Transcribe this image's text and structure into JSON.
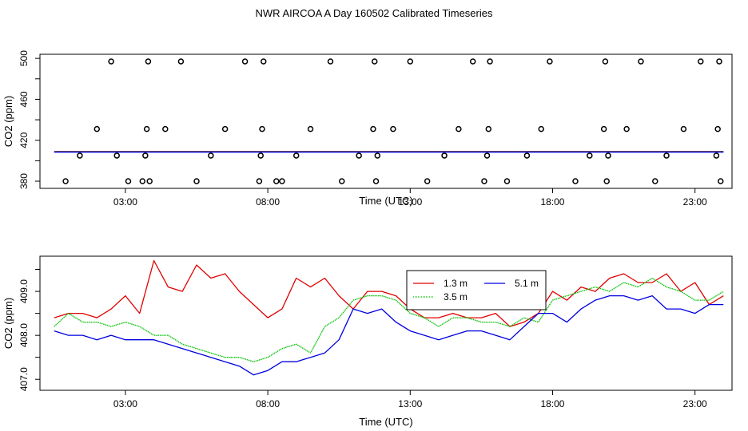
{
  "title": "NWR AIRCOA A  Day 160502  Calibrated Timeseries",
  "colors": {
    "h1": "#e00000",
    "h2": "#00c000",
    "h3": "#0000e0",
    "points": "#000000"
  },
  "chart_data": [
    {
      "type": "scatter",
      "panel": "top",
      "title": "NWR AIRCOA A  Day 160502  Calibrated Timeseries",
      "xlabel": "Time (UTC)",
      "ylabel": "CO2 (ppm)",
      "xlim": [
        0,
        24.3
      ],
      "ylim": [
        373,
        504
      ],
      "x_ticks": [
        3,
        8,
        13,
        18,
        23
      ],
      "x_tick_labels": [
        "03:00",
        "08:00",
        "13:00",
        "18:00",
        "23:00"
      ],
      "y_ticks": [
        380,
        400,
        420,
        440,
        460,
        480,
        500
      ],
      "y_tick_labels": [
        "380",
        "",
        "420",
        "",
        "460",
        "",
        "500"
      ],
      "calibration_points": {
        "x": [
          0.9,
          1.4,
          2.0,
          2.5,
          2.7,
          3.1,
          3.6,
          3.7,
          3.75,
          3.8,
          3.85,
          4.4,
          4.95,
          5.5,
          6.0,
          6.5,
          7.2,
          7.7,
          7.75,
          7.8,
          7.85,
          8.3,
          8.5,
          9.0,
          9.5,
          10.2,
          10.6,
          11.2,
          11.7,
          11.75,
          11.8,
          11.85,
          12.4,
          13.0,
          13.6,
          14.2,
          14.7,
          15.2,
          15.6,
          15.7,
          15.75,
          15.8,
          16.4,
          17.1,
          17.6,
          17.9,
          18.8,
          19.3,
          19.8,
          19.85,
          19.9,
          19.95,
          20.6,
          21.1,
          21.6,
          22.0,
          22.6,
          23.2,
          23.75,
          23.8,
          23.85,
          23.9
        ],
        "y": [
          380,
          405,
          431,
          497,
          405,
          380,
          380,
          405,
          431,
          497,
          380,
          431,
          497,
          380,
          405,
          431,
          497,
          380,
          405,
          431,
          497,
          380,
          380,
          405,
          431,
          497,
          380,
          405,
          431,
          497,
          380,
          405,
          431,
          497,
          380,
          405,
          431,
          497,
          380,
          405,
          431,
          497,
          380,
          405,
          431,
          497,
          380,
          405,
          431,
          497,
          380,
          405,
          431,
          497,
          380,
          405,
          431,
          497,
          405,
          431,
          497,
          380
        ]
      },
      "series_level": 408.7
    },
    {
      "type": "line",
      "panel": "bottom",
      "xlabel": "Time (UTC)",
      "ylabel": "CO2 (ppm)",
      "xlim": [
        0,
        24.3
      ],
      "ylim": [
        406.75,
        409.8
      ],
      "x_ticks": [
        3,
        8,
        13,
        18,
        23
      ],
      "x_tick_labels": [
        "03:00",
        "08:00",
        "13:00",
        "18:00",
        "23:00"
      ],
      "y_ticks": [
        407.0,
        407.5,
        408.0,
        408.5,
        409.0,
        409.5
      ],
      "y_tick_labels": [
        "407.0",
        "",
        "408.0",
        "",
        "409.0",
        ""
      ],
      "legend": {
        "position": "top-center"
      },
      "x": [
        0.5,
        1,
        1.5,
        2,
        2.5,
        3,
        3.5,
        4,
        4.5,
        5,
        5.5,
        6,
        6.5,
        7,
        7.5,
        8,
        8.5,
        9,
        9.5,
        10,
        10.5,
        11,
        11.5,
        12,
        12.5,
        13,
        13.5,
        14,
        14.5,
        15,
        15.5,
        16,
        16.5,
        17,
        17.5,
        18,
        18.5,
        19,
        19.5,
        20,
        20.5,
        21,
        21.5,
        22,
        22.5,
        23,
        23.5,
        24
      ],
      "series": [
        {
          "name": "1.3 m",
          "color": "#e00000",
          "values": [
            408.4,
            408.5,
            408.5,
            408.4,
            408.6,
            408.9,
            408.5,
            409.7,
            409.1,
            409.0,
            409.6,
            409.3,
            409.4,
            409.0,
            408.7,
            408.4,
            408.6,
            409.3,
            409.1,
            409.3,
            408.9,
            408.6,
            409.0,
            409.0,
            408.9,
            408.6,
            408.4,
            408.4,
            408.5,
            408.4,
            408.4,
            408.5,
            408.2,
            408.3,
            408.5,
            409.0,
            408.8,
            409.1,
            409.0,
            409.3,
            409.4,
            409.2,
            409.2,
            409.4,
            409.0,
            409.2,
            408.7,
            408.9
          ]
        },
        {
          "name": "3.5 m",
          "color": "#00c000",
          "values": [
            408.2,
            408.5,
            408.3,
            408.3,
            408.2,
            408.3,
            408.2,
            408.0,
            408.0,
            407.8,
            407.7,
            407.6,
            407.5,
            407.5,
            407.4,
            407.5,
            407.7,
            407.8,
            407.6,
            408.2,
            408.4,
            408.8,
            408.9,
            408.9,
            408.8,
            408.5,
            408.4,
            408.2,
            408.4,
            408.4,
            408.3,
            408.3,
            408.2,
            408.4,
            408.3,
            408.8,
            408.9,
            409.0,
            409.1,
            409.0,
            409.2,
            409.1,
            409.3,
            409.1,
            409.0,
            408.8,
            408.8,
            409.0
          ]
        },
        {
          "name": "5.1 m",
          "color": "#0000e0",
          "values": [
            408.1,
            408.0,
            408.0,
            407.9,
            408.0,
            407.9,
            407.9,
            407.9,
            407.8,
            407.7,
            407.6,
            407.5,
            407.4,
            407.3,
            407.1,
            407.2,
            407.4,
            407.4,
            407.5,
            407.6,
            407.9,
            408.6,
            408.5,
            408.6,
            408.3,
            408.1,
            408.0,
            407.9,
            408.0,
            408.1,
            408.1,
            408.0,
            407.9,
            408.2,
            408.5,
            408.5,
            408.3,
            408.6,
            408.8,
            408.9,
            408.9,
            408.8,
            408.9,
            408.6,
            408.6,
            408.5,
            408.7,
            408.7
          ]
        }
      ]
    }
  ]
}
